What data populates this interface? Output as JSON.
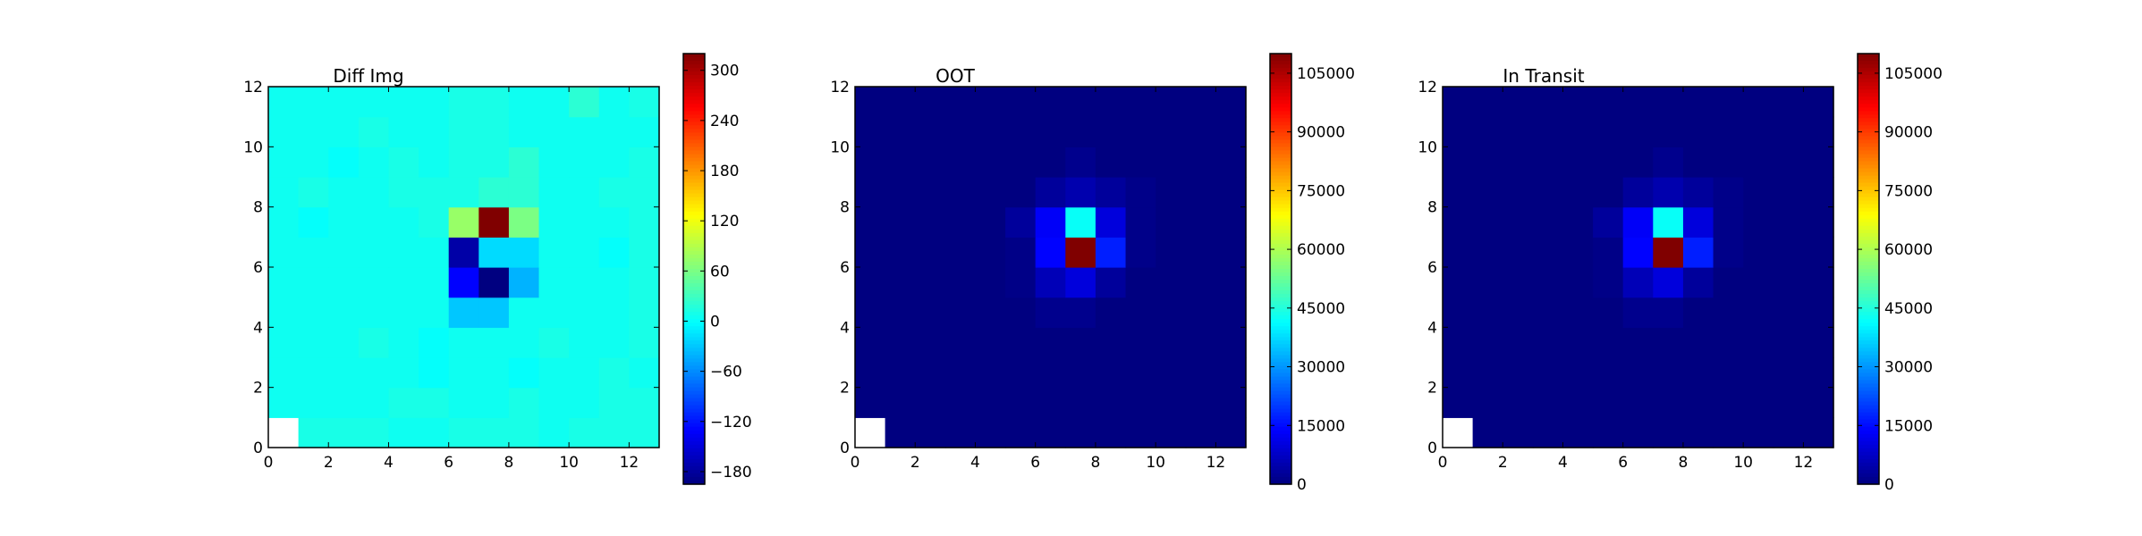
{
  "chart_data": [
    {
      "type": "heatmap",
      "title": "Diff Img",
      "xlim": [
        0,
        13
      ],
      "ylim": [
        0,
        12
      ],
      "x_ticks": [
        0,
        2,
        4,
        6,
        8,
        10,
        12
      ],
      "y_ticks": [
        0,
        2,
        4,
        6,
        8,
        10,
        12
      ],
      "colormap": "jet",
      "color_range": [
        -195,
        320
      ],
      "colorbar_ticks": [
        -180,
        -120,
        -60,
        0,
        60,
        120,
        180,
        240,
        300
      ],
      "grid": false,
      "masked_cells": [
        [
          0,
          0
        ],
        [
          11,
          0
        ],
        [
          11,
          1
        ]
      ],
      "values": [
        [
          null,
          10,
          10,
          10,
          5,
          5,
          10,
          10,
          10,
          5,
          10,
          10,
          10
        ],
        [
          5,
          5,
          5,
          5,
          10,
          10,
          5,
          5,
          10,
          5,
          5,
          10,
          10
        ],
        [
          5,
          5,
          5,
          5,
          5,
          0,
          5,
          5,
          0,
          5,
          5,
          10,
          5
        ],
        [
          5,
          5,
          5,
          10,
          5,
          0,
          5,
          5,
          5,
          10,
          5,
          5,
          10
        ],
        [
          5,
          5,
          5,
          5,
          5,
          5,
          -30,
          -30,
          5,
          5,
          5,
          5,
          10
        ],
        [
          5,
          5,
          5,
          5,
          5,
          5,
          -130,
          -195,
          -40,
          5,
          5,
          5,
          10
        ],
        [
          5,
          5,
          5,
          5,
          5,
          5,
          -175,
          -20,
          -20,
          5,
          5,
          0,
          10
        ],
        [
          5,
          0,
          5,
          5,
          5,
          10,
          75,
          320,
          60,
          5,
          5,
          5,
          10
        ],
        [
          5,
          10,
          5,
          5,
          10,
          10,
          10,
          20,
          20,
          5,
          5,
          10,
          10
        ],
        [
          5,
          5,
          0,
          5,
          10,
          5,
          10,
          10,
          20,
          5,
          5,
          5,
          10
        ],
        [
          5,
          5,
          5,
          10,
          5,
          5,
          10,
          10,
          5,
          5,
          5,
          5,
          5
        ],
        [
          5,
          5,
          5,
          5,
          5,
          5,
          10,
          10,
          5,
          5,
          20,
          5,
          10
        ],
        [
          null,
          null,
          10,
          10,
          10,
          10,
          10,
          10,
          10,
          10,
          10,
          10,
          10
        ]
      ]
    },
    {
      "type": "heatmap",
      "title": "OOT",
      "xlim": [
        0,
        13
      ],
      "ylim": [
        0,
        12
      ],
      "x_ticks": [
        0,
        2,
        4,
        6,
        8,
        10,
        12
      ],
      "y_ticks": [
        0,
        2,
        4,
        6,
        8,
        10,
        12
      ],
      "colormap": "jet",
      "color_range": [
        0,
        110000
      ],
      "colorbar_ticks": [
        0,
        15000,
        30000,
        45000,
        60000,
        75000,
        90000,
        105000
      ],
      "grid": false,
      "masked_cells": [
        [
          0,
          0
        ],
        [
          11,
          0
        ],
        [
          11,
          1
        ]
      ],
      "values": [
        [
          null,
          0,
          0,
          0,
          0,
          0,
          0,
          0,
          0,
          0,
          0,
          0,
          0
        ],
        [
          0,
          0,
          0,
          0,
          0,
          0,
          0,
          0,
          0,
          0,
          0,
          0,
          0
        ],
        [
          0,
          0,
          0,
          0,
          0,
          0,
          0,
          0,
          0,
          0,
          0,
          0,
          0
        ],
        [
          0,
          0,
          0,
          0,
          0,
          0,
          0,
          0,
          0,
          0,
          0,
          0,
          0
        ],
        [
          0,
          0,
          0,
          0,
          0,
          0,
          1500,
          1500,
          0,
          0,
          0,
          0,
          0
        ],
        [
          0,
          0,
          0,
          0,
          0,
          800,
          6000,
          10000,
          3000,
          0,
          0,
          0,
          0
        ],
        [
          0,
          0,
          0,
          0,
          0,
          800,
          14000,
          110000,
          17000,
          1000,
          0,
          0,
          0
        ],
        [
          0,
          0,
          0,
          0,
          0,
          3000,
          13000,
          42000,
          10000,
          1000,
          0,
          0,
          0
        ],
        [
          0,
          0,
          0,
          0,
          0,
          0,
          3000,
          5000,
          3000,
          1000,
          0,
          0,
          0
        ],
        [
          0,
          0,
          0,
          0,
          0,
          0,
          0,
          1500,
          0,
          0,
          0,
          0,
          0
        ],
        [
          0,
          0,
          0,
          0,
          0,
          0,
          0,
          0,
          0,
          0,
          0,
          0,
          0
        ],
        [
          0,
          0,
          0,
          0,
          0,
          0,
          0,
          0,
          0,
          0,
          0,
          0,
          0
        ],
        [
          null,
          null,
          0,
          0,
          0,
          0,
          0,
          0,
          0,
          0,
          0,
          0,
          0
        ]
      ]
    },
    {
      "type": "heatmap",
      "title": "In Transit",
      "xlim": [
        0,
        13
      ],
      "ylim": [
        0,
        12
      ],
      "x_ticks": [
        0,
        2,
        4,
        6,
        8,
        10,
        12
      ],
      "y_ticks": [
        0,
        2,
        4,
        6,
        8,
        10,
        12
      ],
      "colormap": "jet",
      "color_range": [
        0,
        110000
      ],
      "colorbar_ticks": [
        0,
        15000,
        30000,
        45000,
        60000,
        75000,
        90000,
        105000
      ],
      "grid": false,
      "masked_cells": [
        [
          0,
          0
        ],
        [
          11,
          0
        ],
        [
          11,
          1
        ]
      ],
      "values": [
        [
          null,
          0,
          0,
          0,
          0,
          0,
          0,
          0,
          0,
          0,
          0,
          0,
          0
        ],
        [
          0,
          0,
          0,
          0,
          0,
          0,
          0,
          0,
          0,
          0,
          0,
          0,
          0
        ],
        [
          0,
          0,
          0,
          0,
          0,
          0,
          0,
          0,
          0,
          0,
          0,
          0,
          0
        ],
        [
          0,
          0,
          0,
          0,
          0,
          0,
          0,
          0,
          0,
          0,
          0,
          0,
          0
        ],
        [
          0,
          0,
          0,
          0,
          0,
          0,
          1500,
          1500,
          0,
          0,
          0,
          0,
          0
        ],
        [
          0,
          0,
          0,
          0,
          0,
          800,
          6000,
          10000,
          3000,
          0,
          0,
          0,
          0
        ],
        [
          0,
          0,
          0,
          0,
          0,
          800,
          14000,
          110000,
          17000,
          1000,
          0,
          0,
          0
        ],
        [
          0,
          0,
          0,
          0,
          0,
          3000,
          13000,
          42000,
          10000,
          1000,
          0,
          0,
          0
        ],
        [
          0,
          0,
          0,
          0,
          0,
          0,
          3000,
          5000,
          3000,
          1000,
          0,
          0,
          0
        ],
        [
          0,
          0,
          0,
          0,
          0,
          0,
          0,
          1500,
          0,
          0,
          0,
          0,
          0
        ],
        [
          0,
          0,
          0,
          0,
          0,
          0,
          0,
          0,
          0,
          0,
          0,
          0,
          0
        ],
        [
          0,
          0,
          0,
          0,
          0,
          0,
          0,
          0,
          0,
          0,
          0,
          0,
          0
        ],
        [
          null,
          null,
          0,
          0,
          0,
          0,
          0,
          0,
          0,
          0,
          0,
          0,
          0
        ]
      ]
    }
  ]
}
